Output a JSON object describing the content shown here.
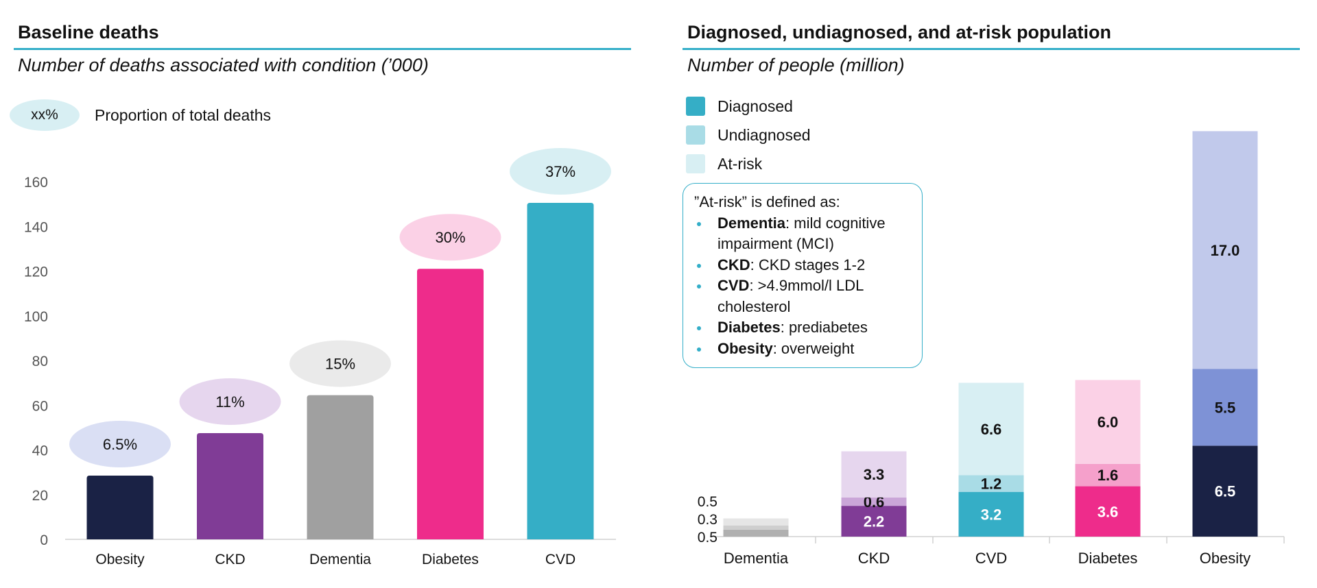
{
  "left_panel": {
    "title": "Baseline deaths",
    "subtitle": "Number of deaths associated with condition (’000)",
    "legend_pill": "xx%",
    "legend_label": "Proportion of total deaths"
  },
  "right_panel": {
    "title": "Diagnosed, undiagnosed, and at-risk population",
    "subtitle": "Number of people (million)",
    "legend": [
      "Diagnosed",
      "Undiagnosed",
      "At-risk"
    ],
    "note": {
      "heading": "”At-risk” is defined as:",
      "items": [
        {
          "term": "Dementia",
          "text": ": mild cognitive impairment (MCI)"
        },
        {
          "term": "CKD",
          "text": ": CKD stages 1-2"
        },
        {
          "term": "CVD",
          "text": ": >4.9mmol/l LDL cholesterol"
        },
        {
          "term": "Diabetes",
          "text": ": prediabetes"
        },
        {
          "term": "Obesity",
          "text": ": overweight"
        }
      ]
    }
  },
  "chart_data": [
    {
      "type": "bar",
      "title": "Baseline deaths",
      "ylabel": "Number of deaths associated with condition (’000)",
      "categories": [
        "Obesity",
        "CKD",
        "Dementia",
        "Diabetes",
        "CVD"
      ],
      "values": [
        28.5,
        47.5,
        64.5,
        121,
        150.5
      ],
      "proportion_labels": [
        "6.5%",
        "11%",
        "15%",
        "30%",
        "37%"
      ],
      "colors": [
        "#1a2245",
        "#803c96",
        "#a0a0a0",
        "#ee2c8b",
        "#35aec6"
      ],
      "bubble_colors": [
        "#dadff4",
        "#e6d6ee",
        "#eaeaea",
        "#fbd1e6",
        "#d8eff3"
      ],
      "yticks": [
        0,
        20,
        40,
        60,
        80,
        100,
        120,
        140,
        160
      ],
      "ylim": [
        0,
        160
      ]
    },
    {
      "type": "bar",
      "stacked": true,
      "title": "Diagnosed, undiagnosed, and at-risk population",
      "ylabel": "Number of people (million)",
      "categories": [
        "Dementia",
        "CKD",
        "CVD",
        "Diabetes",
        "Obesity"
      ],
      "series": [
        {
          "name": "Diagnosed",
          "values": [
            0.5,
            2.2,
            3.2,
            3.6,
            6.5
          ]
        },
        {
          "name": "Undiagnosed",
          "values": [
            0.3,
            0.6,
            1.2,
            1.6,
            5.5
          ]
        },
        {
          "name": "At-risk",
          "values": [
            0.5,
            3.3,
            6.6,
            6.0,
            17.0
          ]
        }
      ],
      "data_labels": [
        [
          "",
          "",
          ""
        ],
        [
          "2.2",
          "0.6",
          "3.3"
        ],
        [
          "3.2",
          "1.2",
          "6.6"
        ],
        [
          "3.6",
          "1.6",
          "6.0"
        ],
        [
          "6.5",
          "5.5",
          "17.0"
        ]
      ],
      "side_labels": [
        "0.5",
        "0.3",
        "0.5"
      ],
      "colors": [
        [
          "#b0b0b0",
          "#cfcfcf",
          "#e6e6e6"
        ],
        [
          "#803c96",
          "#caa6d8",
          "#e6d6ee"
        ],
        [
          "#35aec6",
          "#a9dce6",
          "#d8eff3"
        ],
        [
          "#ee2c8b",
          "#f5a0cb",
          "#fbd1e6"
        ],
        [
          "#1a2245",
          "#7e92d6",
          "#c1c9eb"
        ]
      ],
      "label_colors": [
        [
          "#111111",
          "#111111",
          "#111111"
        ],
        [
          "#ffffff",
          "#111111",
          "#111111"
        ],
        [
          "#ffffff",
          "#111111",
          "#111111"
        ],
        [
          "#ffffff",
          "#111111",
          "#111111"
        ],
        [
          "#ffffff",
          "#111111",
          "#111111"
        ]
      ],
      "legend_colors": [
        "#35aec6",
        "#a9dce6",
        "#d8eff3"
      ],
      "ylim": [
        0,
        29
      ]
    }
  ]
}
